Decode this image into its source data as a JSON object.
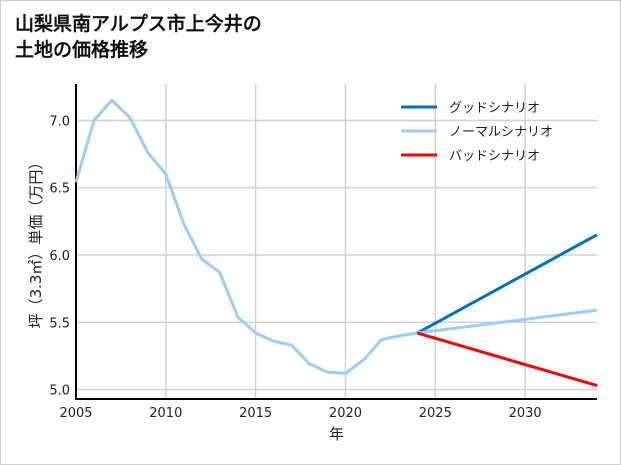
{
  "chart_data": {
    "type": "line",
    "title": "山梨県南アルプス市上今井の\n土地の価格推移",
    "xlabel": "年",
    "ylabel": "坪（3.3㎡）単価（万円）",
    "xlim": [
      2005,
      2034
    ],
    "ylim": [
      4.93,
      7.27
    ],
    "xticks": [
      2005,
      2010,
      2015,
      2020,
      2025,
      2030
    ],
    "yticks": [
      5.0,
      5.5,
      6.0,
      6.5,
      7.0
    ],
    "ytick_labels": [
      "5.0",
      "5.5",
      "6.0",
      "6.5",
      "7.0"
    ],
    "grid": true,
    "legend_position": "top-right",
    "history": {
      "color": "#99ccff",
      "x": [
        2005,
        2006,
        2007,
        2008,
        2009,
        2010,
        2011,
        2012,
        2013,
        2014,
        2015,
        2016,
        2017,
        2018,
        2019,
        2020,
        2021,
        2022,
        2023,
        2024
      ],
      "y": [
        6.54,
        7.0,
        7.15,
        7.02,
        6.76,
        6.6,
        6.23,
        5.97,
        5.87,
        5.54,
        5.42,
        5.36,
        5.33,
        5.19,
        5.13,
        5.12,
        5.22,
        5.37,
        5.4,
        5.42
      ]
    },
    "series": [
      {
        "name": "グッドシナリオ",
        "color": "#0070c0",
        "x": [
          2024,
          2034
        ],
        "y": [
          5.42,
          6.15
        ]
      },
      {
        "name": "ノーマルシナリオ",
        "color": "#99ccff",
        "x": [
          2024,
          2034
        ],
        "y": [
          5.42,
          5.59
        ]
      },
      {
        "name": "バッドシナリオ",
        "color": "#ff0000",
        "x": [
          2024,
          2034
        ],
        "y": [
          5.42,
          5.03
        ]
      }
    ]
  }
}
